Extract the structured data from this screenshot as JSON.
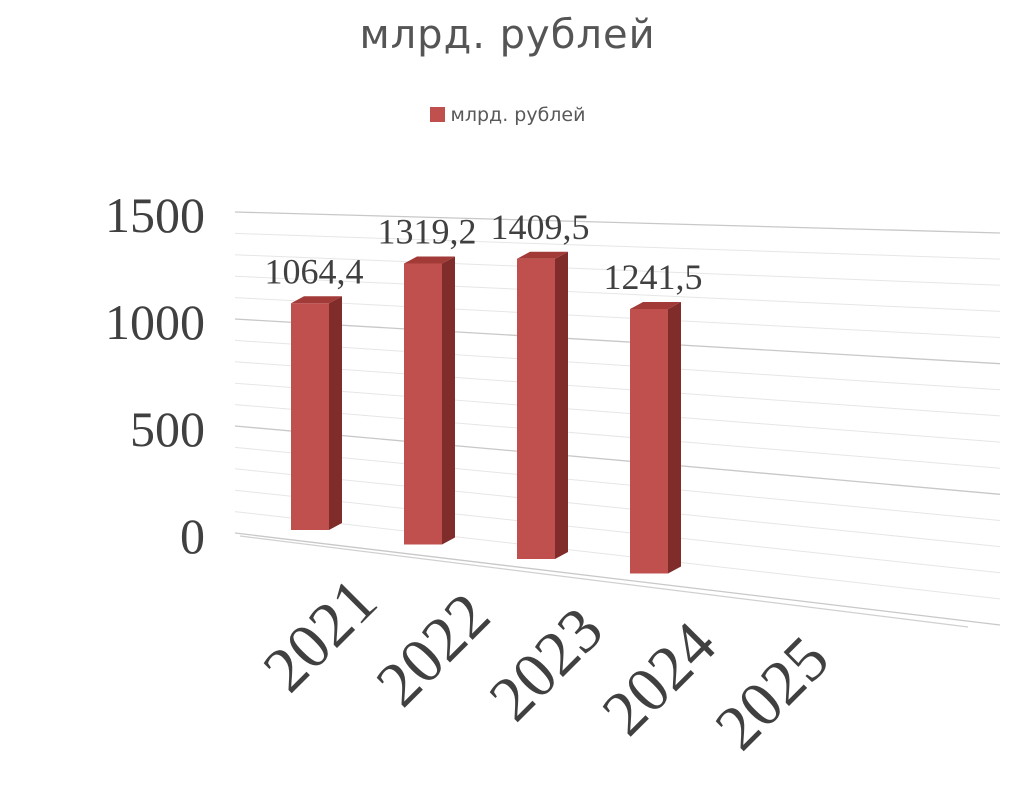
{
  "chart_data": {
    "type": "bar",
    "title": "млрд. рублей",
    "categories": [
      "2021",
      "2022",
      "2023",
      "2024",
      "2025"
    ],
    "series": [
      {
        "name": "млрд. рублей",
        "values": [
          1064.4,
          1319.2,
          1409.5,
          1241.5,
          null
        ],
        "data_labels": [
          "1064,4",
          "1319,2",
          "1409,5",
          "1241,5",
          ""
        ]
      }
    ],
    "yticks": [
      "0",
      "500",
      "1000",
      "1500"
    ],
    "ylim": [
      0,
      1500
    ],
    "grid": true,
    "legend": "top",
    "style": "3d-column",
    "colors": {
      "front": "#c0504d",
      "side": "#7f2c2a",
      "top": "#a23b38",
      "grid": "#d9d9d9",
      "text": "#404040"
    }
  }
}
